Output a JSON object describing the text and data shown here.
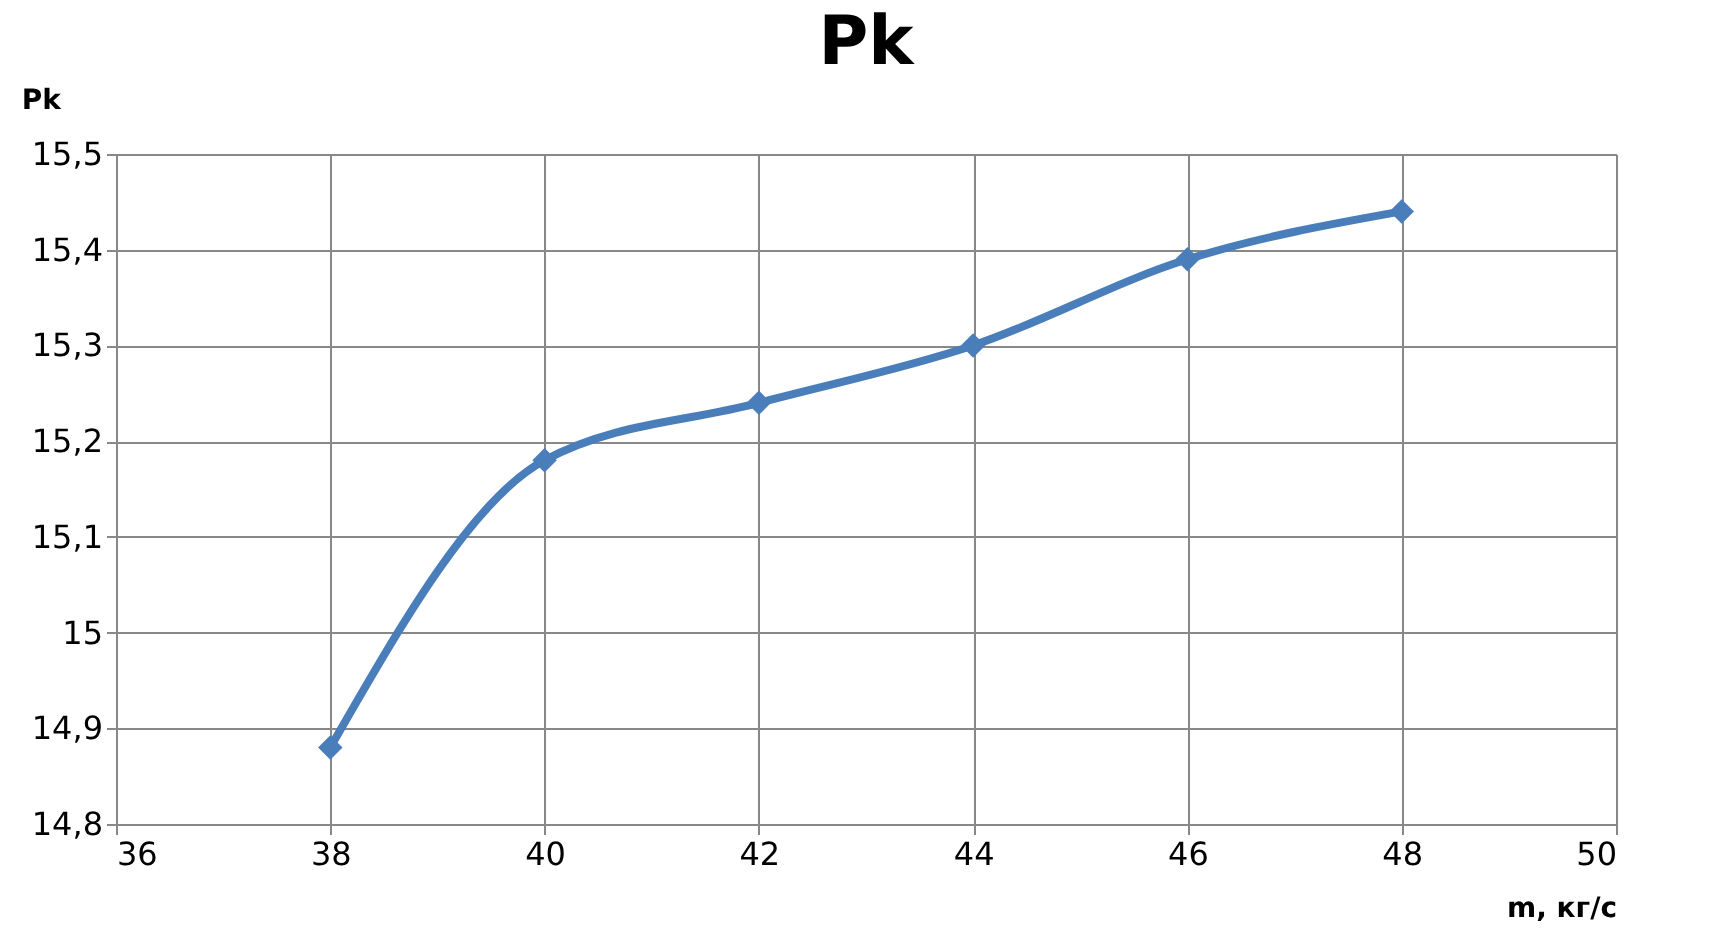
{
  "chart_data": {
    "type": "line",
    "title": "Pk",
    "xlabel": "m, кг/с",
    "ylabel": "Pk",
    "x": [
      38,
      40,
      42,
      44,
      46,
      48
    ],
    "series": [
      {
        "color": "#4a7ebb",
        "values": [
          14.88,
          15.18,
          15.24,
          15.3,
          15.39,
          15.44
        ]
      }
    ],
    "xlim": [
      36,
      50
    ],
    "xticks": [
      36,
      38,
      40,
      42,
      44,
      46,
      48,
      50
    ],
    "ylim": [
      14.8,
      15.5
    ],
    "yticks": [
      {
        "value": 14.8,
        "label": "14,8"
      },
      {
        "value": 14.9,
        "label": "14,9"
      },
      15,
      {
        "value": 15.1,
        "label": "15,1"
      },
      {
        "value": 15.2,
        "label": "15,2"
      },
      {
        "value": 15.3,
        "label": "15,3"
      },
      {
        "value": 15.4,
        "label": "15,4"
      },
      {
        "value": 15.5,
        "label": "15,5"
      }
    ],
    "grid": true,
    "marker": "diamond",
    "line_style": "solid"
  }
}
